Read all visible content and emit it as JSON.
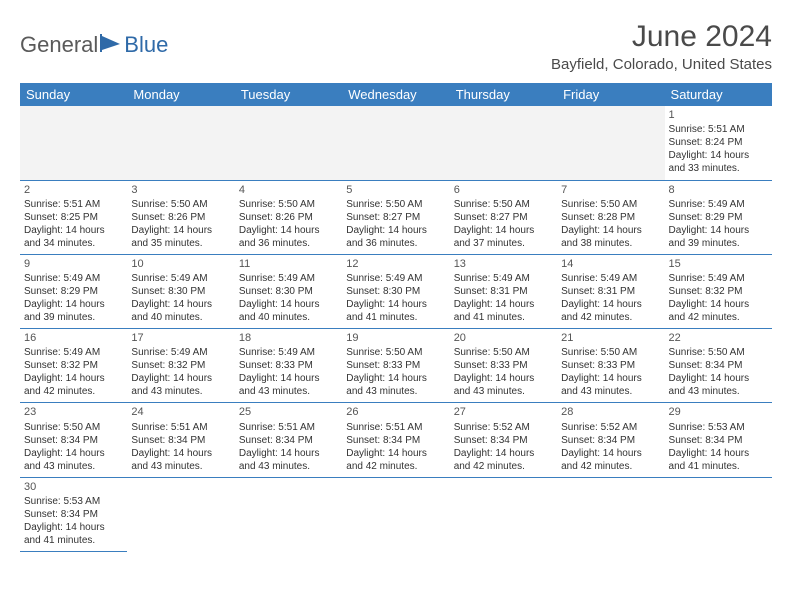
{
  "logo": {
    "text1": "General",
    "text2": "Blue"
  },
  "title": "June 2024",
  "location": "Bayfield, Colorado, United States",
  "header_bg": "#3a7ebf",
  "weekdays": [
    "Sunday",
    "Monday",
    "Tuesday",
    "Wednesday",
    "Thursday",
    "Friday",
    "Saturday"
  ],
  "days": {
    "1": {
      "sunrise": "5:51 AM",
      "sunset": "8:24 PM",
      "daylight": "14 hours and 33 minutes."
    },
    "2": {
      "sunrise": "5:51 AM",
      "sunset": "8:25 PM",
      "daylight": "14 hours and 34 minutes."
    },
    "3": {
      "sunrise": "5:50 AM",
      "sunset": "8:26 PM",
      "daylight": "14 hours and 35 minutes."
    },
    "4": {
      "sunrise": "5:50 AM",
      "sunset": "8:26 PM",
      "daylight": "14 hours and 36 minutes."
    },
    "5": {
      "sunrise": "5:50 AM",
      "sunset": "8:27 PM",
      "daylight": "14 hours and 36 minutes."
    },
    "6": {
      "sunrise": "5:50 AM",
      "sunset": "8:27 PM",
      "daylight": "14 hours and 37 minutes."
    },
    "7": {
      "sunrise": "5:50 AM",
      "sunset": "8:28 PM",
      "daylight": "14 hours and 38 minutes."
    },
    "8": {
      "sunrise": "5:49 AM",
      "sunset": "8:29 PM",
      "daylight": "14 hours and 39 minutes."
    },
    "9": {
      "sunrise": "5:49 AM",
      "sunset": "8:29 PM",
      "daylight": "14 hours and 39 minutes."
    },
    "10": {
      "sunrise": "5:49 AM",
      "sunset": "8:30 PM",
      "daylight": "14 hours and 40 minutes."
    },
    "11": {
      "sunrise": "5:49 AM",
      "sunset": "8:30 PM",
      "daylight": "14 hours and 40 minutes."
    },
    "12": {
      "sunrise": "5:49 AM",
      "sunset": "8:30 PM",
      "daylight": "14 hours and 41 minutes."
    },
    "13": {
      "sunrise": "5:49 AM",
      "sunset": "8:31 PM",
      "daylight": "14 hours and 41 minutes."
    },
    "14": {
      "sunrise": "5:49 AM",
      "sunset": "8:31 PM",
      "daylight": "14 hours and 42 minutes."
    },
    "15": {
      "sunrise": "5:49 AM",
      "sunset": "8:32 PM",
      "daylight": "14 hours and 42 minutes."
    },
    "16": {
      "sunrise": "5:49 AM",
      "sunset": "8:32 PM",
      "daylight": "14 hours and 42 minutes."
    },
    "17": {
      "sunrise": "5:49 AM",
      "sunset": "8:32 PM",
      "daylight": "14 hours and 43 minutes."
    },
    "18": {
      "sunrise": "5:49 AM",
      "sunset": "8:33 PM",
      "daylight": "14 hours and 43 minutes."
    },
    "19": {
      "sunrise": "5:50 AM",
      "sunset": "8:33 PM",
      "daylight": "14 hours and 43 minutes."
    },
    "20": {
      "sunrise": "5:50 AM",
      "sunset": "8:33 PM",
      "daylight": "14 hours and 43 minutes."
    },
    "21": {
      "sunrise": "5:50 AM",
      "sunset": "8:33 PM",
      "daylight": "14 hours and 43 minutes."
    },
    "22": {
      "sunrise": "5:50 AM",
      "sunset": "8:34 PM",
      "daylight": "14 hours and 43 minutes."
    },
    "23": {
      "sunrise": "5:50 AM",
      "sunset": "8:34 PM",
      "daylight": "14 hours and 43 minutes."
    },
    "24": {
      "sunrise": "5:51 AM",
      "sunset": "8:34 PM",
      "daylight": "14 hours and 43 minutes."
    },
    "25": {
      "sunrise": "5:51 AM",
      "sunset": "8:34 PM",
      "daylight": "14 hours and 43 minutes."
    },
    "26": {
      "sunrise": "5:51 AM",
      "sunset": "8:34 PM",
      "daylight": "14 hours and 42 minutes."
    },
    "27": {
      "sunrise": "5:52 AM",
      "sunset": "8:34 PM",
      "daylight": "14 hours and 42 minutes."
    },
    "28": {
      "sunrise": "5:52 AM",
      "sunset": "8:34 PM",
      "daylight": "14 hours and 42 minutes."
    },
    "29": {
      "sunrise": "5:53 AM",
      "sunset": "8:34 PM",
      "daylight": "14 hours and 41 minutes."
    },
    "30": {
      "sunrise": "5:53 AM",
      "sunset": "8:34 PM",
      "daylight": "14 hours and 41 minutes."
    }
  },
  "labels": {
    "sunrise": "Sunrise: ",
    "sunset": "Sunset: ",
    "daylight": "Daylight: "
  },
  "first_weekday_index": 6,
  "num_days": 30
}
